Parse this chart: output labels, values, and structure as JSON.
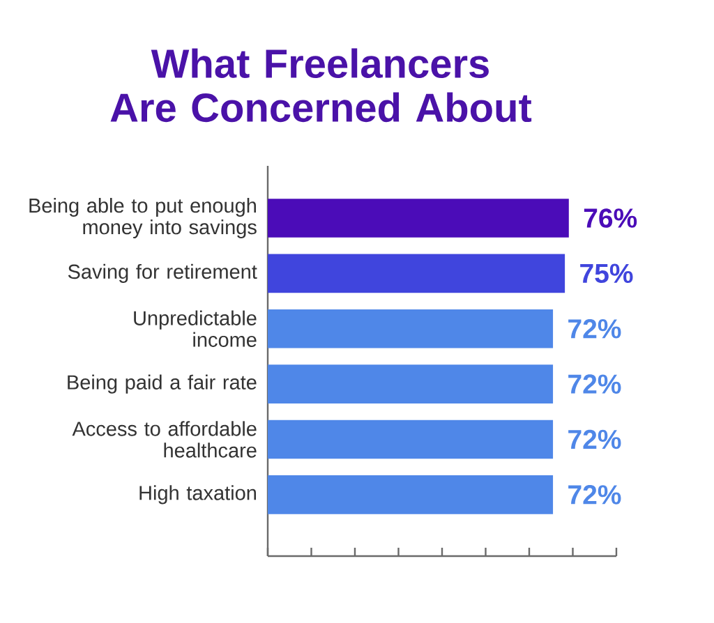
{
  "chart_data": {
    "type": "bar",
    "orientation": "horizontal",
    "title": "What Freelancers\nAre Concerned About",
    "categories": [
      "Being able to put enough\nmoney into savings",
      "Saving for retirement",
      "Unpredictable\nincome",
      "Being paid a fair rate",
      "Access to affordable\nhealthcare",
      "High taxation"
    ],
    "values": [
      76,
      75,
      72,
      72,
      72,
      72
    ],
    "colors": [
      "#4b0cb8",
      "#4045dd",
      "#4f87e8",
      "#4f87e8",
      "#4f87e8",
      "#4f87e8"
    ],
    "value_labels": [
      "76%",
      "75%",
      "72%",
      "72%",
      "72%",
      "72%"
    ],
    "xlim": [
      0,
      88
    ],
    "xticks": [
      {
        "value": 0,
        "label": null
      },
      {
        "value": 11,
        "label": null
      },
      {
        "value": 22,
        "label": null
      },
      {
        "value": 33,
        "label": null
      },
      {
        "value": 44,
        "label": null
      },
      {
        "value": 55,
        "label": null
      },
      {
        "value": 66,
        "label": null
      },
      {
        "value": 77,
        "label": null
      },
      {
        "value": 88,
        "label": null
      }
    ],
    "tick_labels": "y"
  }
}
